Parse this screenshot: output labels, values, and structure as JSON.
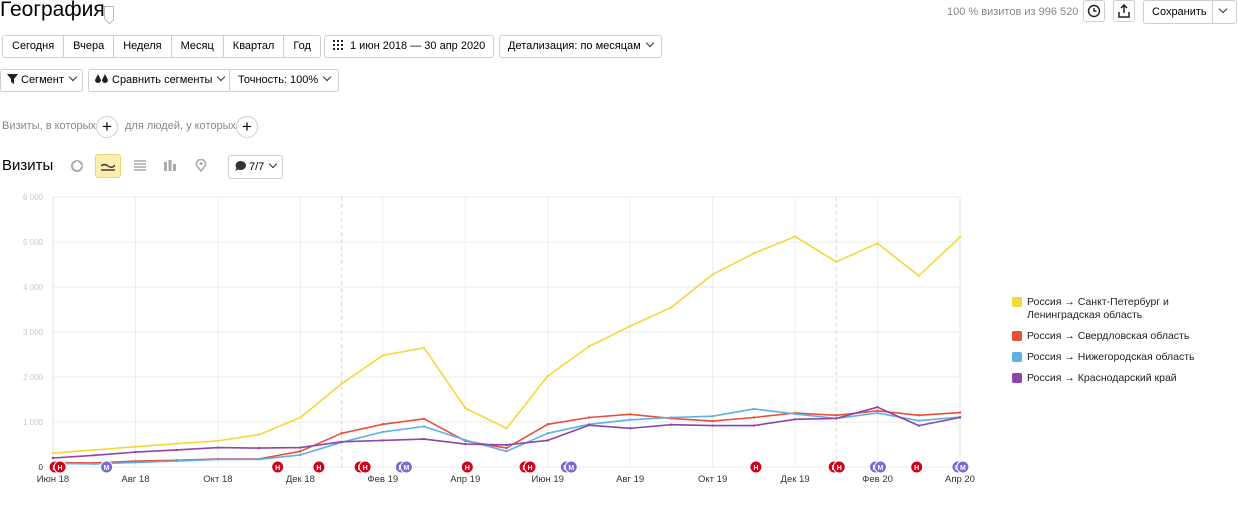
{
  "header": {
    "title": "География",
    "visits_info": "100 % визитов из 996 520",
    "save_label": "Сохранить"
  },
  "period_tabs": [
    "Сегодня",
    "Вчера",
    "Неделя",
    "Месяц",
    "Квартал",
    "Год"
  ],
  "date_range": "1 июн 2018 — 30 апр 2020",
  "detail": "Детализация: по месяцам",
  "segment_label": "Сегмент",
  "compare_label": "Сравнить сегменты",
  "accuracy_label": "Точность: 100%",
  "filters": {
    "visits_label": "Визиты, в которых",
    "people_label": "для людей, у которых"
  },
  "chart_section": {
    "title": "Визиты",
    "series_count": "7/7"
  },
  "icons": {
    "bookmark": "bookmark-icon",
    "clock": "clock-icon",
    "export": "export-icon",
    "calendar": "calendar-icon",
    "filter": "filter-icon",
    "compare": "compare-icon",
    "pie": "pie-chart-icon",
    "line": "line-chart-icon",
    "area": "area-chart-icon",
    "bar": "bar-chart-icon",
    "map": "map-pin-icon",
    "comment": "comment-icon"
  },
  "chart_data": {
    "type": "line",
    "x": [
      "Июн 18",
      "Июл 18",
      "Авг 18",
      "Сен 18",
      "Окт 18",
      "Ноя 18",
      "Дек 18",
      "Янв 19",
      "Фев 19",
      "Мар 19",
      "Апр 19",
      "Май 19",
      "Июн 19",
      "Июл 19",
      "Авг 19",
      "Сен 19",
      "Окт 19",
      "Ноя 19",
      "Дек 19",
      "Янв 20",
      "Фев 20",
      "Мар 20",
      "Апр 20"
    ],
    "x_tick_labels": [
      "Июн 18",
      "Авг 18",
      "Окт 18",
      "Дек 18",
      "Фев 19",
      "Апр 19",
      "Июн 19",
      "Авг 19",
      "Окт 19",
      "Дек 19",
      "Фев 20",
      "Апр 20"
    ],
    "y_tick_labels": [
      "0",
      "1 000",
      "2 000",
      "3 000",
      "4 000",
      "5 000",
      "6 000"
    ],
    "ylim": [
      0,
      6000
    ],
    "grid": true,
    "legend_position": "right",
    "series": [
      {
        "name": "Россия → Санкт-Петербург и Ленинградская область",
        "color": "#f5d63d",
        "values": [
          310,
          380,
          450,
          520,
          580,
          720,
          1100,
          1850,
          2480,
          2650,
          1310,
          860,
          2020,
          2680,
          3130,
          3550,
          4280,
          4750,
          5120,
          4560,
          4970,
          4250,
          5110
        ]
      },
      {
        "name": "Россия → Свердловская область",
        "color": "#e8503a",
        "values": [
          100,
          90,
          130,
          150,
          180,
          180,
          350,
          750,
          950,
          1070,
          580,
          420,
          950,
          1100,
          1170,
          1080,
          1020,
          1100,
          1200,
          1150,
          1250,
          1150,
          1210
        ]
      },
      {
        "name": "Россия → Нижегородская область",
        "color": "#5fb0e6",
        "values": [
          80,
          70,
          100,
          130,
          170,
          170,
          270,
          550,
          780,
          900,
          600,
          350,
          750,
          950,
          1050,
          1100,
          1130,
          1290,
          1180,
          1080,
          1200,
          1030,
          1110
        ]
      },
      {
        "name": "Россия → Краснодарский край",
        "color": "#8e44ad",
        "values": [
          200,
          260,
          330,
          380,
          430,
          420,
          430,
          560,
          590,
          620,
          510,
          490,
          590,
          930,
          860,
          940,
          920,
          920,
          1060,
          1080,
          1330,
          920,
          1100
        ]
      }
    ],
    "annotations": [
      {
        "x": 0.05,
        "labels": [
          "Н",
          "Н"
        ],
        "color": "#d0021b"
      },
      {
        "x": 1.3,
        "labels": [
          "М"
        ],
        "color": "#7b6ad6"
      },
      {
        "x": 5.45,
        "labels": [
          "Н"
        ],
        "color": "#d0021b"
      },
      {
        "x": 6.45,
        "labels": [
          "Н"
        ],
        "color": "#d0021b"
      },
      {
        "x": 7.45,
        "labels": [
          "Н",
          "Н"
        ],
        "color": "#d0021b"
      },
      {
        "x": 8.45,
        "labels": [
          "М",
          "М"
        ],
        "color": "#7b6ad6"
      },
      {
        "x": 10.05,
        "labels": [
          "Н"
        ],
        "color": "#d0021b"
      },
      {
        "x": 11.45,
        "labels": [
          "Н",
          "Н"
        ],
        "color": "#d0021b"
      },
      {
        "x": 12.45,
        "labels": [
          "М",
          "М"
        ],
        "color": "#7b6ad6"
      },
      {
        "x": 17.05,
        "labels": [
          "Н"
        ],
        "color": "#d0021b"
      },
      {
        "x": 18.95,
        "labels": [
          "Н",
          "Н"
        ],
        "color": "#d0021b"
      },
      {
        "x": 19.95,
        "labels": [
          "М",
          "М"
        ],
        "color": "#7b6ad6"
      },
      {
        "x": 20.95,
        "labels": [
          "Н"
        ],
        "color": "#d0021b"
      },
      {
        "x": 21.95,
        "labels": [
          "М",
          "М"
        ],
        "color": "#7b6ad6"
      }
    ]
  }
}
